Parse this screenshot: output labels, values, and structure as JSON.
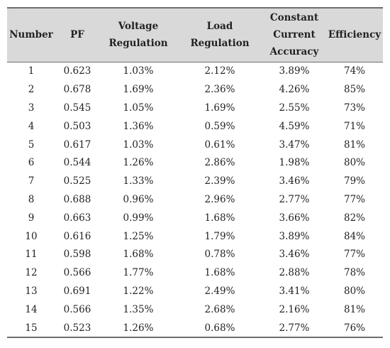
{
  "table": {
    "headers": [
      [
        "Number"
      ],
      [
        "PF"
      ],
      [
        "Voltage",
        "Regulation"
      ],
      [
        "Load",
        "Regulation"
      ],
      [
        "Constant",
        "Current",
        "Accuracy"
      ],
      [
        "Efficiency"
      ]
    ],
    "rows": [
      [
        "1",
        "0.623",
        "1.03%",
        "2.12%",
        "3.89%",
        "74%"
      ],
      [
        "2",
        "0.678",
        "1.69%",
        "2.36%",
        "4.26%",
        "85%"
      ],
      [
        "3",
        "0.545",
        "1.05%",
        "1.69%",
        "2.55%",
        "73%"
      ],
      [
        "4",
        "0.503",
        "1.36%",
        "0.59%",
        "4.59%",
        "71%"
      ],
      [
        "5",
        "0.617",
        "1.03%",
        "0.61%",
        "3.47%",
        "81%"
      ],
      [
        "6",
        "0.544",
        "1.26%",
        "2.86%",
        "1.98%",
        "80%"
      ],
      [
        "7",
        "0.525",
        "1.33%",
        "2.39%",
        "3.46%",
        "79%"
      ],
      [
        "8",
        "0.688",
        "0.96%",
        "2.96%",
        "2.77%",
        "77%"
      ],
      [
        "9",
        "0.663",
        "0.99%",
        "1.68%",
        "3.66%",
        "82%"
      ],
      [
        "10",
        "0.616",
        "1.25%",
        "1.79%",
        "3.89%",
        "84%"
      ],
      [
        "11",
        "0.598",
        "1.68%",
        "0.78%",
        "3.46%",
        "77%"
      ],
      [
        "12",
        "0.566",
        "1.77%",
        "1.68%",
        "2.88%",
        "78%"
      ],
      [
        "13",
        "0.691",
        "1.22%",
        "2.49%",
        "3.41%",
        "80%"
      ],
      [
        "14",
        "0.566",
        "1.35%",
        "2.68%",
        "2.16%",
        "81%"
      ],
      [
        "15",
        "0.523",
        "1.26%",
        "0.68%",
        "2.77%",
        "76%"
      ]
    ]
  }
}
